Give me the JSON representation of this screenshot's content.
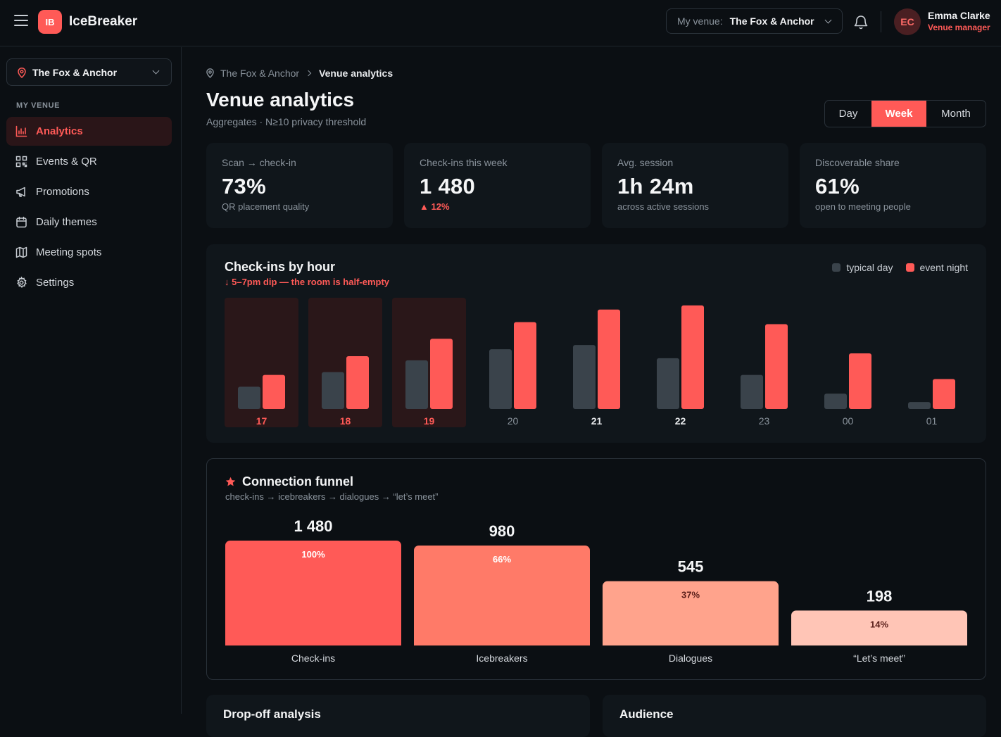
{
  "app": {
    "logo": "IB",
    "name": "IceBreaker"
  },
  "header": {
    "venue_label": "My venue:",
    "venue_value": "The Fox & Anchor",
    "user": {
      "initials": "EC",
      "name": "Emma Clarke",
      "role": "Venue manager"
    }
  },
  "sidebar": {
    "venue": "The Fox & Anchor",
    "section": "MY VENUE",
    "items": [
      {
        "label": "Analytics",
        "icon": "bar-chart-icon"
      },
      {
        "label": "Events & QR",
        "icon": "qr-code-icon"
      },
      {
        "label": "Promotions",
        "icon": "megaphone-icon"
      },
      {
        "label": "Daily themes",
        "icon": "calendar-icon"
      },
      {
        "label": "Meeting spots",
        "icon": "map-icon"
      },
      {
        "label": "Settings",
        "icon": "gear-icon"
      }
    ]
  },
  "breadcrumb": {
    "root": "The Fox & Anchor",
    "current": "Venue analytics"
  },
  "page": {
    "title": "Venue analytics",
    "subtitle": "Aggregates · N≥10 privacy threshold"
  },
  "range": {
    "options": [
      "Day",
      "Week",
      "Month"
    ],
    "selected": "Week"
  },
  "kpis": [
    {
      "label": "Scan → check-in",
      "value": "73%",
      "note": "QR placement quality"
    },
    {
      "label": "Check-ins this week",
      "value": "1 480",
      "note": "▲ 12%"
    },
    {
      "label": "Avg. session",
      "value": "1h 24m",
      "note": "across active sessions"
    },
    {
      "label": "Discoverable share",
      "value": "61%",
      "note": "open to meeting people"
    }
  ],
  "colors": {
    "accent": "#ff5a57",
    "typical": "#3a434b",
    "event": "#ff5a57"
  },
  "chart_data": {
    "type": "bar",
    "title": "Check-ins by hour",
    "subtitle": "↓ 5–7pm dip — the room is half-empty",
    "categories": [
      "17",
      "18",
      "19",
      "20",
      "21",
      "22",
      "23",
      "00",
      "01"
    ],
    "highlighted": [
      "17",
      "18",
      "19"
    ],
    "emphasized": [
      "21",
      "22"
    ],
    "series": [
      {
        "name": "typical day",
        "values": [
          32,
          53,
          70,
          86,
          92,
          73,
          49,
          22,
          10
        ]
      },
      {
        "name": "event night",
        "values": [
          49,
          76,
          101,
          125,
          143,
          149,
          122,
          80,
          43
        ]
      }
    ],
    "ylim": [
      0,
      160
    ],
    "legend": "top-right"
  },
  "funnel": {
    "title": "Connection funnel",
    "subtitle": "check-ins → icebreakers → dialogues → “let’s meet”",
    "stages": [
      {
        "label": "Check-ins",
        "value": "1 480",
        "pct": "100%",
        "fraction": 1.0
      },
      {
        "label": "Icebreakers",
        "value": "980",
        "pct": "66%",
        "fraction": 0.953
      },
      {
        "label": "Dialogues",
        "value": "545",
        "pct": "37%",
        "fraction": 0.613
      },
      {
        "label": "“Let’s meet”",
        "value": "198",
        "pct": "14%",
        "fraction": 0.333
      }
    ]
  },
  "bottom": {
    "left_title": "Drop-off analysis",
    "right_title": "Audience"
  }
}
